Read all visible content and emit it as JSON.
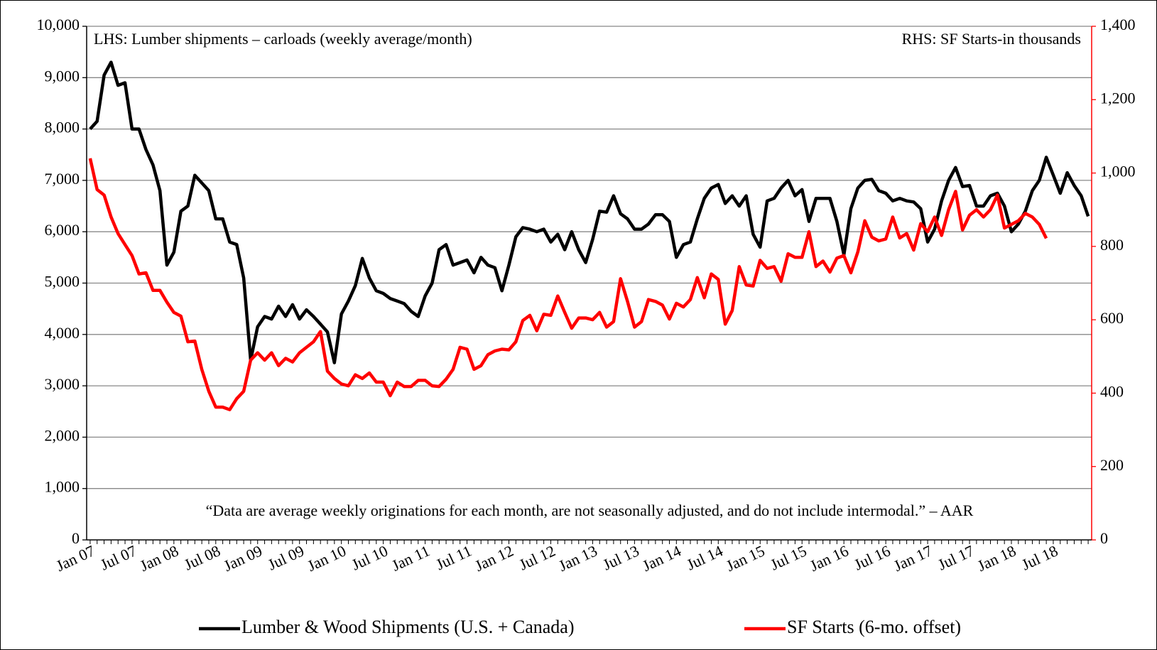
{
  "chart_data": {
    "type": "line",
    "annotations": [
      "LHS: Lumber shipments – carloads (weekly  average/month)",
      "RHS: SF Starts-in thousands",
      "“Data are average weekly originations for each month, are not seasonally adjusted, and do not include intermodal.” –  AAR"
    ],
    "categories": [
      "Jan 07",
      null,
      null,
      null,
      null,
      null,
      "Jul 07",
      null,
      null,
      null,
      null,
      null,
      "Jan 08",
      null,
      null,
      null,
      null,
      null,
      "Jul 08",
      null,
      null,
      null,
      null,
      null,
      "Jan 09",
      null,
      null,
      null,
      null,
      null,
      "Jul 09",
      null,
      null,
      null,
      null,
      null,
      "Jan 10",
      null,
      null,
      null,
      null,
      null,
      "Jul 10",
      null,
      null,
      null,
      null,
      null,
      "Jan 11",
      null,
      null,
      null,
      null,
      null,
      "Jul 11",
      null,
      null,
      null,
      null,
      null,
      "Jan 12",
      null,
      null,
      null,
      null,
      null,
      "Jul 12",
      null,
      null,
      null,
      null,
      null,
      "Jan 13",
      null,
      null,
      null,
      null,
      null,
      "Jul 13",
      null,
      null,
      null,
      null,
      null,
      "Jan 14",
      null,
      null,
      null,
      null,
      null,
      "Jul 14",
      null,
      null,
      null,
      null,
      null,
      "Jan 15",
      null,
      null,
      null,
      null,
      null,
      "Jul 15",
      null,
      null,
      null,
      null,
      null,
      "Jan 16",
      null,
      null,
      null,
      null,
      null,
      "Jul 16",
      null,
      null,
      null,
      null,
      null,
      "Jan 17",
      null,
      null,
      null,
      null,
      null,
      "Jul 17",
      null,
      null,
      null,
      null,
      null,
      "Jan 18",
      null,
      null,
      null,
      null,
      null,
      "Jul 18",
      null,
      null,
      null,
      null,
      null
    ],
    "series": [
      {
        "name": "Lumber & Wood Shipments (U.S. + Canada)",
        "color": "#000000",
        "values": [
          8000,
          8150,
          9050,
          9300,
          8850,
          8900,
          8000,
          8000,
          7600,
          7300,
          6800,
          5350,
          5600,
          6400,
          6500,
          7100,
          6950,
          6800,
          6250,
          6250,
          5800,
          5750,
          5100,
          3500,
          4150,
          4350,
          4300,
          4550,
          4350,
          4580,
          4300,
          4480,
          4350,
          4200,
          4050,
          3450,
          4400,
          4650,
          4950,
          5480,
          5100,
          4850,
          4800,
          4700,
          4650,
          4600,
          4450,
          4350,
          4750,
          5000,
          5650,
          5750,
          5350,
          5400,
          5450,
          5200,
          5500,
          5350,
          5300,
          4850,
          5350,
          5900,
          6080,
          6050,
          6000,
          6050,
          5800,
          5950,
          5650,
          6000,
          5650,
          5400,
          5850,
          6400,
          6380,
          6700,
          6350,
          6250,
          6050,
          6050,
          6150,
          6330,
          6330,
          6200,
          5500,
          5750,
          5800,
          6250,
          6650,
          6850,
          6920,
          6550,
          6700,
          6500,
          6700,
          5950,
          5700,
          6600,
          6650,
          6850,
          7000,
          6700,
          6820,
          6200,
          6650,
          6650,
          6650,
          6200,
          5550,
          6450,
          6850,
          7000,
          7020,
          6800,
          6750,
          6600,
          6650,
          6600,
          6580,
          6450,
          5800,
          6050,
          6600,
          7000,
          7250,
          6880,
          6900,
          6500,
          6500,
          6700,
          6750,
          6500,
          6000,
          6150,
          6400,
          6800,
          7000,
          7450,
          7100,
          6750,
          7150,
          6900,
          6700,
          6300
        ]
      },
      {
        "name": "SF Starts (6-mo. offset)",
        "color": "#ff0000",
        "axis": "y2",
        "values": [
          1040,
          955,
          940,
          880,
          835,
          805,
          775,
          725,
          728,
          680,
          680,
          648,
          620,
          610,
          540,
          542,
          465,
          405,
          362,
          362,
          355,
          385,
          405,
          490,
          510,
          490,
          510,
          475,
          495,
          485,
          510,
          525,
          540,
          568,
          460,
          440,
          425,
          420,
          450,
          440,
          455,
          430,
          430,
          393,
          430,
          418,
          418,
          435,
          435,
          420,
          418,
          438,
          465,
          525,
          520,
          465,
          475,
          505,
          515,
          520,
          518,
          540,
          598,
          612,
          570,
          615,
          612,
          665,
          620,
          577,
          605,
          605,
          600,
          620,
          580,
          595,
          712,
          650,
          580,
          595,
          655,
          650,
          640,
          602,
          645,
          635,
          655,
          715,
          660,
          725,
          710,
          588,
          625,
          745,
          695,
          692,
          762,
          740,
          745,
          705,
          780,
          770,
          770,
          840,
          745,
          760,
          730,
          768,
          775,
          728,
          785,
          870,
          825,
          815,
          820,
          880,
          823,
          835,
          790,
          862,
          840,
          880,
          830,
          900,
          950,
          845,
          885,
          900,
          880,
          900,
          940,
          850,
          860,
          870,
          890,
          880,
          860,
          822,
          null,
          null,
          null,
          null,
          null,
          null
        ]
      }
    ],
    "ylim": [
      0,
      10000
    ],
    "yticks": [
      0,
      {
        "value": 1000,
        "label": "1,000"
      },
      {
        "value": 2000,
        "label": "2,000"
      },
      {
        "value": 3000,
        "label": "3,000"
      },
      {
        "value": 4000,
        "label": "4,000"
      },
      {
        "value": 5000,
        "label": "5,000"
      },
      {
        "value": 6000,
        "label": "6,000"
      },
      {
        "value": 7000,
        "label": "7,000"
      },
      {
        "value": 8000,
        "label": "8,000"
      },
      {
        "value": 9000,
        "label": "9,000"
      },
      {
        "value": 10000,
        "label": "10,000"
      }
    ],
    "y2lim": [
      0,
      1400
    ],
    "y2ticks": [
      0,
      200,
      400,
      600,
      800,
      {
        "value": 1000,
        "label": "1,000"
      },
      {
        "value": 1200,
        "label": "1,200"
      },
      {
        "value": 1400,
        "label": "1,400"
      }
    ],
    "y2color": "#ff0000",
    "grid": true,
    "legend": "bottom"
  }
}
